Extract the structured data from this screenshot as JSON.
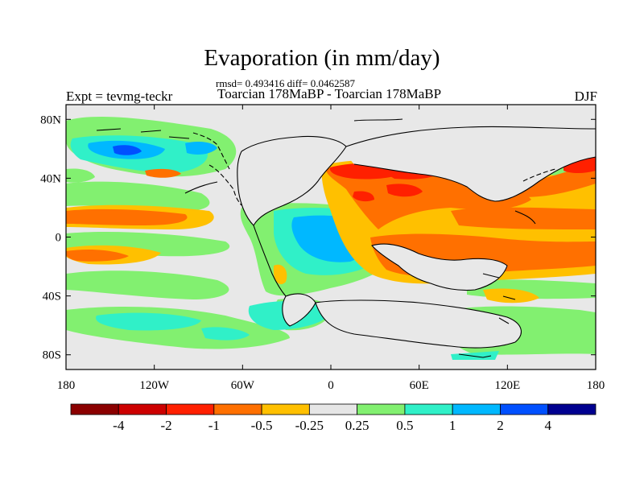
{
  "title": "Evaporation (in mm/day)",
  "stats": "rmsd= 0.493416 diff= 0.0462587",
  "subtitle": "Toarcian 178MaBP - Toarcian 178MaBP",
  "experiment": "Expt = tevmg-teckr",
  "season": "DJF",
  "map": {
    "projection": "cylindrical-equidistant",
    "lon_range": [
      -180,
      180
    ],
    "lat_range": [
      -90,
      90
    ],
    "x_ticks": [
      "180",
      "120W",
      "60W",
      "0",
      "60E",
      "120E",
      "180"
    ],
    "y_ticks": [
      "80N",
      "40N",
      "0",
      "40S",
      "80S"
    ],
    "background_value_color": "#e8e8e8",
    "coastline_color": "#000000"
  },
  "colorbar": {
    "colors": [
      "#8b0000",
      "#cd0000",
      "#ff2000",
      "#ff7000",
      "#ffc000",
      "#e6e6e6",
      "#82f070",
      "#30f0c8",
      "#00b8ff",
      "#0050ff",
      "#000090"
    ],
    "labels": [
      "-4",
      "-2",
      "-1",
      "-0.5",
      "-0.25",
      "0.25",
      "0.5",
      "1",
      "2",
      "4"
    ]
  }
}
